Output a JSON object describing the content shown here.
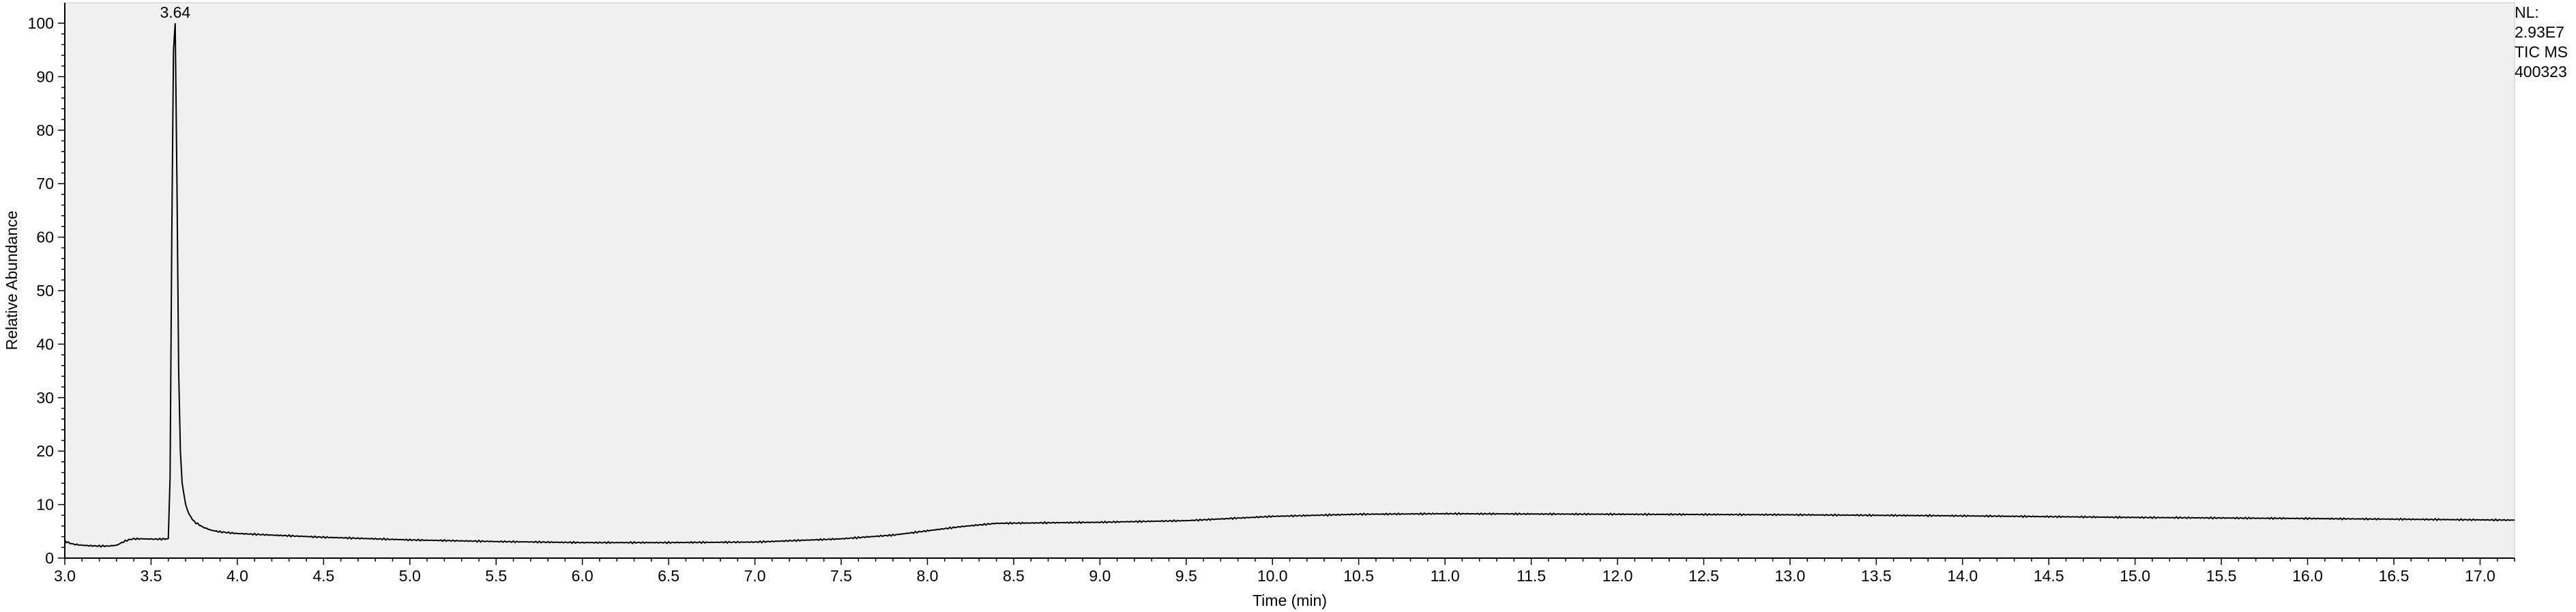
{
  "chart_data": {
    "type": "line",
    "xlabel": "Time (min)",
    "ylabel": "Relative Abundance",
    "xlim": [
      3.0,
      17.2
    ],
    "ylim": [
      0,
      100
    ],
    "x_ticks": [
      3.0,
      3.5,
      4.0,
      4.5,
      5.0,
      5.5,
      6.0,
      6.5,
      7.0,
      7.5,
      8.0,
      8.5,
      9.0,
      9.5,
      10.0,
      10.5,
      11.0,
      11.5,
      12.0,
      12.5,
      13.0,
      13.5,
      14.0,
      14.5,
      15.0,
      15.5,
      16.0,
      16.5,
      17.0
    ],
    "y_ticks": [
      0,
      10,
      20,
      30,
      40,
      50,
      60,
      70,
      80,
      90,
      100
    ],
    "peak_label": {
      "x": 3.64,
      "y": 100,
      "text": "3.64"
    },
    "grid": false,
    "background": "#f0f0f0",
    "line_color": "#000000",
    "series": [
      {
        "x": [
          3.0,
          3.02,
          3.05,
          3.1,
          3.15,
          3.2,
          3.25,
          3.3,
          3.35,
          3.38,
          3.4,
          3.45,
          3.5,
          3.55,
          3.6,
          3.61,
          3.62,
          3.63,
          3.64,
          3.65,
          3.66,
          3.67,
          3.68,
          3.7,
          3.72,
          3.75,
          3.8,
          3.85,
          3.9,
          4.0,
          4.2,
          4.5,
          5.0,
          5.5,
          6.0,
          6.5,
          7.0,
          7.5,
          7.8,
          8.0,
          8.2,
          8.4,
          9.0,
          9.5,
          10.0,
          10.5,
          11.0,
          12.0,
          13.0,
          14.0,
          15.0,
          16.0,
          17.2
        ],
        "y": [
          3.2,
          2.9,
          2.6,
          2.4,
          2.3,
          2.25,
          2.25,
          2.4,
          3.2,
          3.5,
          3.6,
          3.6,
          3.55,
          3.55,
          3.6,
          15,
          60,
          95,
          100,
          70,
          35,
          20,
          14,
          10,
          8.2,
          6.8,
          5.8,
          5.2,
          4.9,
          4.6,
          4.3,
          3.9,
          3.4,
          3.1,
          2.9,
          2.9,
          3.0,
          3.6,
          4.3,
          5.1,
          5.9,
          6.5,
          6.7,
          7.0,
          7.8,
          8.2,
          8.3,
          8.2,
          8.1,
          7.9,
          7.6,
          7.4,
          7.1
        ]
      }
    ]
  },
  "meta": {
    "nl_label": "NL:",
    "nl_value": "2.93E7",
    "scan_type": "TIC  MS",
    "file_id": "400323"
  }
}
